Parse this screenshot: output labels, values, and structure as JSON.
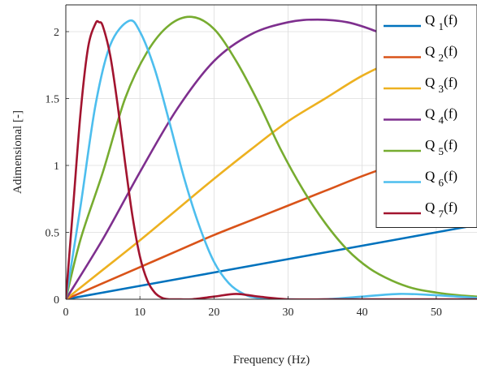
{
  "chart_data": {
    "type": "line",
    "title": "",
    "xlabel": "Frequency (Hz)",
    "ylabel": "Adimensional [-]",
    "xlim": [
      0,
      55.5
    ],
    "ylim": [
      0,
      2.2
    ],
    "xticks": [
      0,
      10,
      20,
      30,
      40,
      50
    ],
    "yticks": [
      0,
      0.5,
      1,
      1.5,
      2
    ],
    "xtick_labels": [
      "0",
      "10",
      "20",
      "30",
      "40",
      "50"
    ],
    "ytick_labels": [
      "0",
      "0.5",
      "1",
      "1.5",
      "2"
    ],
    "grid": true,
    "legend_position": "top-right",
    "series": [
      {
        "name": "Q",
        "sub": "1",
        "suffix": "(f)",
        "color": "#0072BD",
        "x": [
          0,
          5,
          10,
          15,
          20,
          25,
          30,
          35,
          40,
          45,
          50,
          55.5
        ],
        "y": [
          0,
          0.05,
          0.1,
          0.15,
          0.2,
          0.25,
          0.3,
          0.35,
          0.4,
          0.45,
          0.5,
          0.555
        ]
      },
      {
        "name": "Q",
        "sub": "2",
        "suffix": "(f)",
        "color": "#D95319",
        "x": [
          0,
          5,
          10,
          15,
          20,
          25,
          30,
          35,
          40,
          45,
          50,
          55.5
        ],
        "y": [
          0,
          0.12,
          0.24,
          0.36,
          0.48,
          0.59,
          0.7,
          0.81,
          0.92,
          1.02,
          1.12,
          1.22
        ]
      },
      {
        "name": "Q",
        "sub": "3",
        "suffix": "(f)",
        "color": "#EDB120",
        "x": [
          0,
          5,
          10,
          15,
          20,
          25,
          30,
          35,
          40,
          45,
          50,
          55.5
        ],
        "y": [
          0,
          0.22,
          0.44,
          0.67,
          0.9,
          1.12,
          1.33,
          1.5,
          1.67,
          1.8,
          1.91,
          2.0
        ]
      },
      {
        "name": "Q",
        "sub": "4",
        "suffix": "(f)",
        "color": "#7E2F8E",
        "x": [
          0,
          5,
          10,
          15,
          20,
          25,
          30,
          34,
          38,
          42,
          46,
          50,
          55.5
        ],
        "y": [
          0,
          0.45,
          0.95,
          1.42,
          1.78,
          1.98,
          2.07,
          2.09,
          2.07,
          2.0,
          1.9,
          1.78,
          1.62
        ]
      },
      {
        "name": "Q",
        "sub": "5",
        "suffix": "(f)",
        "color": "#77AC30",
        "x": [
          0,
          2,
          5,
          8,
          11,
          14,
          17,
          20,
          23,
          26,
          29,
          32,
          35,
          38,
          41,
          44,
          47,
          50,
          53,
          55.5
        ],
        "y": [
          0,
          0.45,
          0.95,
          1.5,
          1.85,
          2.05,
          2.11,
          2.02,
          1.78,
          1.47,
          1.12,
          0.82,
          0.57,
          0.37,
          0.23,
          0.14,
          0.08,
          0.05,
          0.03,
          0.02
        ]
      },
      {
        "name": "Q",
        "sub": "6",
        "suffix": "(f)",
        "color": "#4DBEEE",
        "x": [
          0,
          2,
          4,
          6,
          8.5,
          10,
          12,
          14,
          16,
          18,
          20,
          22,
          24,
          26,
          30,
          35,
          40,
          45,
          50,
          55.5
        ],
        "y": [
          0,
          0.7,
          1.45,
          1.9,
          2.08,
          2.0,
          1.72,
          1.32,
          0.9,
          0.55,
          0.28,
          0.12,
          0.04,
          0.01,
          0,
          0,
          0.02,
          0.04,
          0.03,
          0.01
        ]
      },
      {
        "name": "Q",
        "sub": "7",
        "suffix": "(f)",
        "color": "#A2142F",
        "x": [
          0,
          1,
          2,
          3,
          4,
          4.5,
          5,
          6,
          7,
          8,
          9,
          10,
          11,
          12,
          13,
          14,
          15,
          17,
          20,
          23,
          26,
          30,
          35,
          40,
          45,
          50,
          55.5
        ],
        "y": [
          0,
          0.7,
          1.4,
          1.88,
          2.06,
          2.07,
          2.04,
          1.82,
          1.45,
          1.02,
          0.62,
          0.32,
          0.14,
          0.05,
          0.01,
          0,
          0,
          0,
          0.02,
          0.04,
          0.02,
          0,
          0,
          0,
          0,
          0,
          0
        ]
      }
    ]
  }
}
